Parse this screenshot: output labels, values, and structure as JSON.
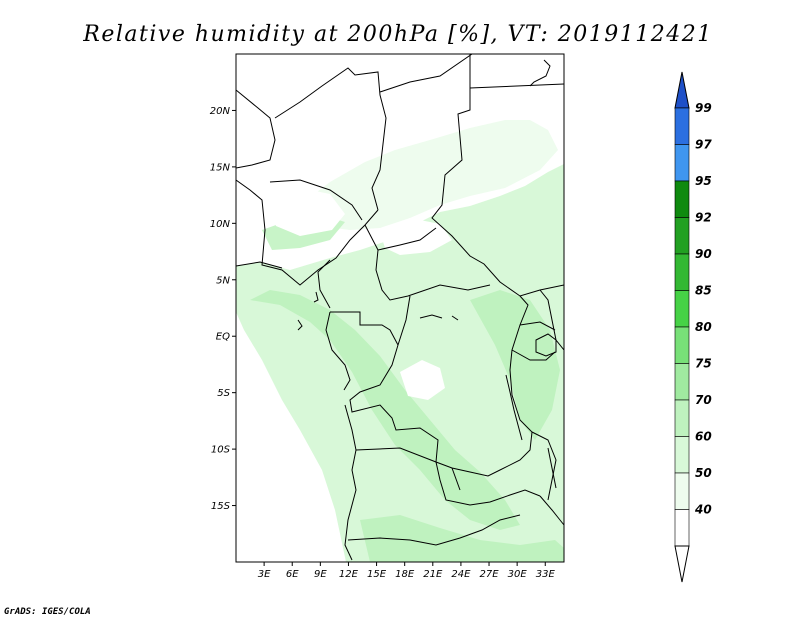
{
  "title": "Relative humidity at 200hPa [%], VT: 2019112421",
  "credit": "GrADS: IGES/COLA",
  "map": {
    "lat_labels": [
      "20N",
      "15N",
      "10N",
      "5N",
      "EQ",
      "5S",
      "10S",
      "15S"
    ],
    "lat_values": [
      20,
      15,
      10,
      5,
      0,
      -5,
      -10,
      -15
    ],
    "lon_labels": [
      "3E",
      "6E",
      "9E",
      "12E",
      "15E",
      "18E",
      "21E",
      "24E",
      "27E",
      "30E",
      "33E"
    ],
    "lon_values": [
      3,
      6,
      9,
      12,
      15,
      18,
      21,
      24,
      27,
      30,
      33
    ],
    "lon_range": [
      0,
      35
    ],
    "lat_range": [
      -20,
      25
    ]
  },
  "colorbar": {
    "labels": [
      "99",
      "97",
      "95",
      "92",
      "90",
      "85",
      "80",
      "75",
      "70",
      "60",
      "50",
      "40"
    ],
    "colors": [
      "#1e50c8",
      "#2b6fe0",
      "#3f96f0",
      "#0f8a0f",
      "#22a022",
      "#33b833",
      "#46d246",
      "#78e078",
      "#a0eaa0",
      "#bff2bf",
      "#d8f8d8",
      "#eefcee",
      "#ffffff"
    ],
    "top_arrow_color": "#1e50c8",
    "bottom_arrow_color": "#ffffff"
  }
}
